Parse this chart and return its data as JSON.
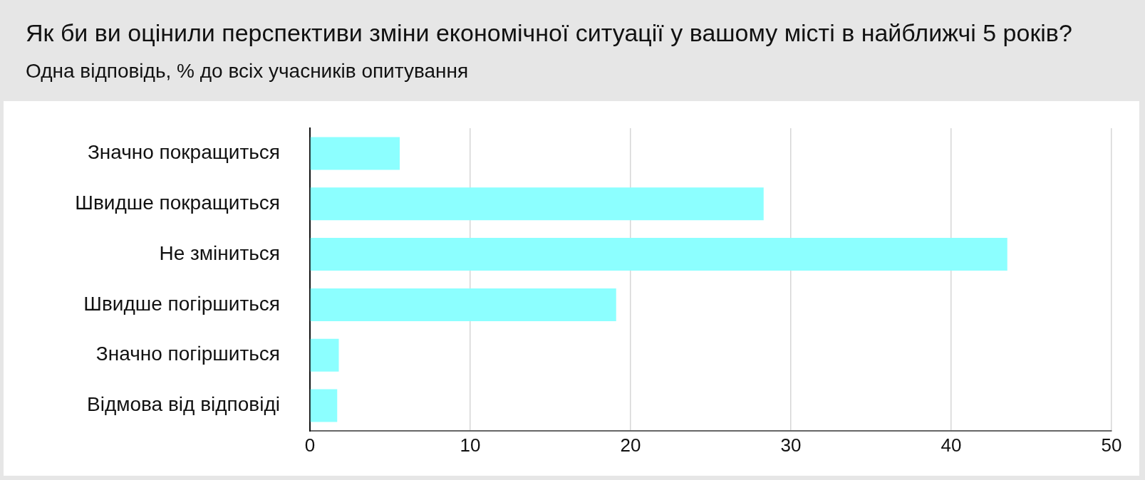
{
  "chart_data": {
    "type": "bar",
    "orientation": "horizontal",
    "title": "Як би ви оцінили перспективи зміни економічної ситуації у вашому місті в найближчі 5 років?",
    "subtitle": "Одна відповідь, % до всіх учасників опитування",
    "categories": [
      "Значно покращиться",
      "Швидше покращиться",
      "Не зміниться",
      "Швидше погіршиться",
      "Значно погіршиться",
      "Відмова від відповіді"
    ],
    "values": [
      5.6,
      28.3,
      43.5,
      19.1,
      1.8,
      1.7
    ],
    "color": "#8cffff",
    "xlim": [
      0,
      50
    ],
    "xticks": [
      0,
      10,
      20,
      30,
      40,
      50
    ],
    "grid": "x"
  }
}
